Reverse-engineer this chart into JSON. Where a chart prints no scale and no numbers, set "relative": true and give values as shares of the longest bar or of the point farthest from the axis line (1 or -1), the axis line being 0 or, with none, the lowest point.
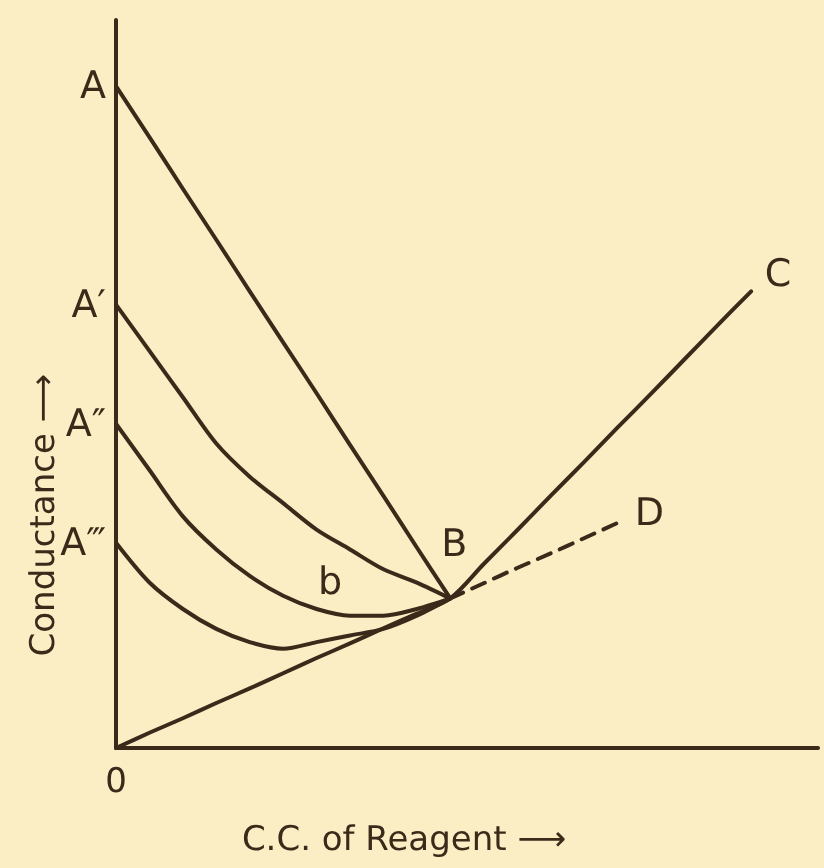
{
  "chart_data": {
    "type": "line",
    "relative": true,
    "xlabel": "C.C. of Reagent ⟶",
    "ylabel": "Conductance ⟶",
    "categories": [
      null,
      null,
      null,
      null,
      null,
      null,
      null,
      null,
      null,
      null,
      null,
      null,
      null,
      null,
      null,
      null,
      null,
      null,
      null,
      null,
      null,
      null
    ],
    "series": [
      {
        "name": "A",
        "color": "#3b2a1a",
        "values": [
          1.0,
          0.923,
          0.845,
          0.768,
          0.69,
          0.613,
          0.536,
          0.458,
          0.381,
          0.303,
          0.226,
          null,
          null,
          null,
          null,
          null,
          null,
          null,
          null,
          null,
          null,
          null
        ]
      },
      {
        "name": "A′",
        "color": "#3b2a1a",
        "values": [
          0.67,
          0.6,
          0.53,
          0.46,
          0.41,
          0.37,
          0.33,
          0.3,
          0.27,
          0.25,
          0.226,
          null,
          null,
          null,
          null,
          null,
          null,
          null,
          null,
          null,
          null,
          null
        ]
      },
      {
        "name": "A″",
        "color": "#3b2a1a",
        "values": [
          0.49,
          0.42,
          0.35,
          0.3,
          0.26,
          0.23,
          0.21,
          0.2,
          0.2,
          0.21,
          0.226,
          null,
          null,
          null,
          null,
          null,
          null,
          null,
          null,
          null,
          null,
          null
        ]
      },
      {
        "name": "A‴",
        "color": "#3b2a1a",
        "values": [
          0.31,
          0.25,
          0.21,
          0.18,
          0.16,
          0.15,
          0.16,
          0.17,
          0.18,
          0.2,
          0.226,
          null,
          null,
          null,
          null,
          null,
          null,
          null,
          null,
          null,
          null,
          null
        ]
      },
      {
        "name": "C",
        "color": "#3b2a1a",
        "values": [
          0,
          0.023,
          0.045,
          0.068,
          0.09,
          0.113,
          0.136,
          0.158,
          0.181,
          0.203,
          0.226,
          0.278,
          0.329,
          0.381,
          0.432,
          0.484,
          0.535,
          0.587,
          0.639,
          0.69,
          null,
          null
        ]
      },
      {
        "name": "D",
        "color": "#3b2a1a",
        "line_style": "dashed",
        "values": [
          null,
          null,
          null,
          null,
          null,
          null,
          null,
          null,
          null,
          null,
          0.226,
          0.249,
          0.272,
          0.294,
          0.317,
          0.34,
          null,
          null,
          null,
          null,
          null,
          null
        ]
      }
    ],
    "annotations": [
      "0",
      "B",
      "b"
    ],
    "legend": false,
    "grid": false,
    "marker": "none"
  }
}
